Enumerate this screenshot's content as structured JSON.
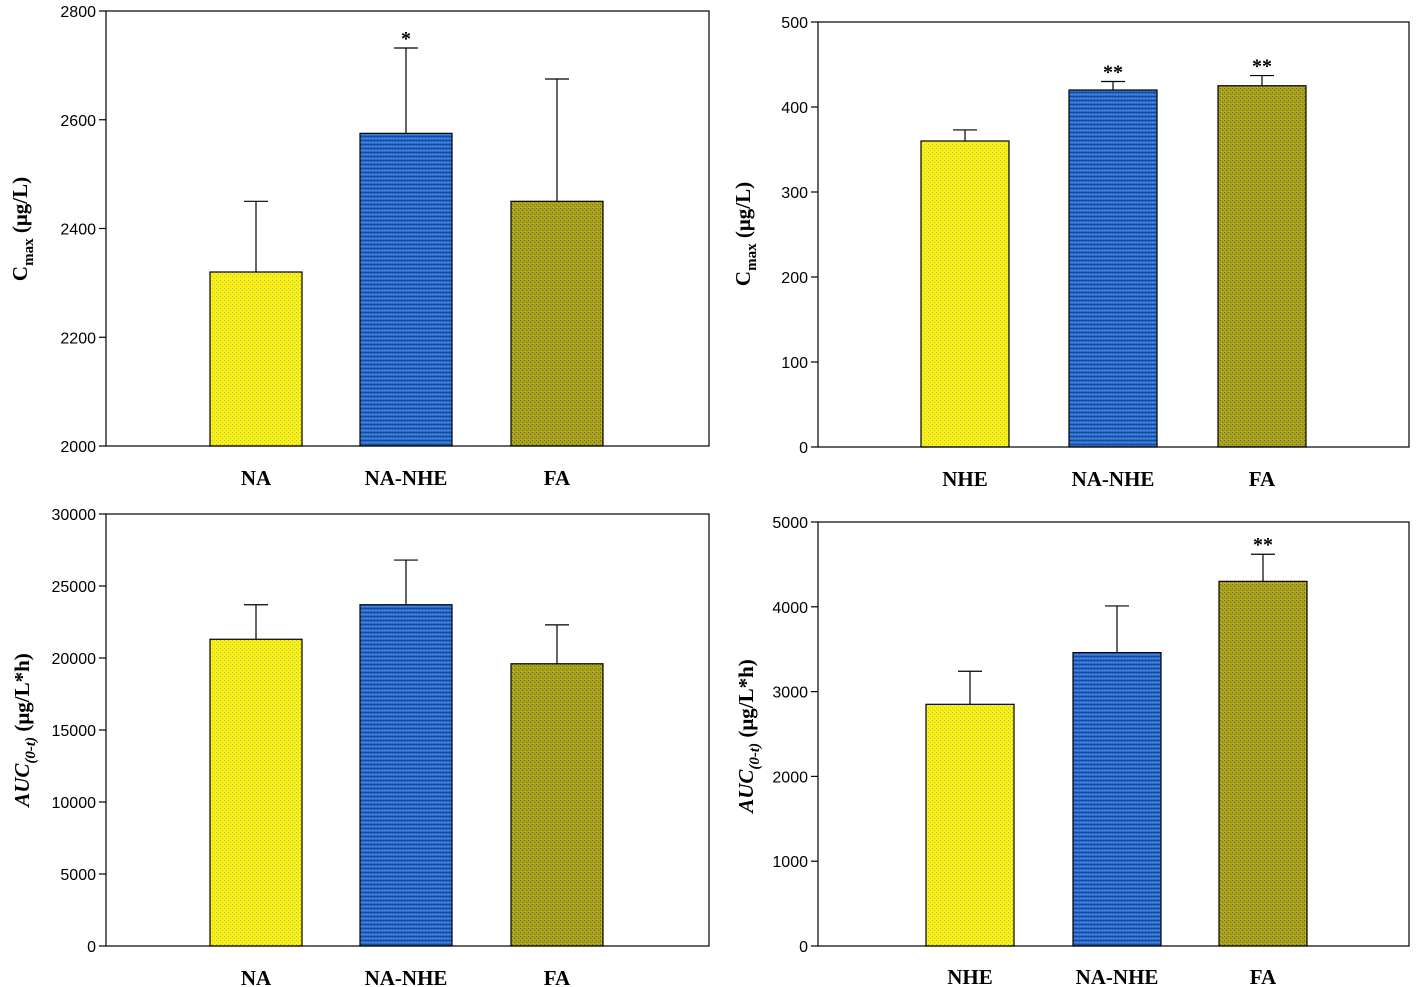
{
  "colors": {
    "yellow": "#f5f01e",
    "blue": "#2a6bc9",
    "olive": "#a8a21c",
    "axis": "#000000"
  },
  "chart_data": [
    {
      "type": "bar",
      "title": "",
      "ylabel": {
        "main": "C",
        "sub": "max",
        "unit": " (μg/L)",
        "italic": false
      },
      "xlabel": "",
      "categories": [
        "NA",
        "NA-NHE",
        "FA"
      ],
      "values": [
        2320,
        2575,
        2450
      ],
      "errors": [
        130,
        157,
        225
      ],
      "annotations": [
        "",
        "*",
        ""
      ],
      "bar_colors": [
        "yellow",
        "blue",
        "olive"
      ],
      "ylim": [
        2000,
        2800
      ],
      "yticks": [
        2000,
        2200,
        2400,
        2600,
        2800
      ],
      "ytick_labels": [
        "2000",
        "2200",
        "2400",
        "2600",
        "2800"
      ]
    },
    {
      "type": "bar",
      "title": "",
      "ylabel": {
        "main": "C",
        "sub": "max",
        "unit": " (μg/L)",
        "italic": false
      },
      "xlabel": "",
      "categories": [
        "NHE",
        "NA-NHE",
        "FA"
      ],
      "values": [
        360,
        420,
        425
      ],
      "errors": [
        13,
        10,
        12
      ],
      "annotations": [
        "",
        "**",
        "**"
      ],
      "bar_colors": [
        "yellow",
        "blue",
        "olive"
      ],
      "ylim": [
        0,
        500
      ],
      "yticks": [
        0,
        100,
        200,
        300,
        400,
        500
      ],
      "ytick_labels": [
        "0",
        "100",
        "200",
        "300",
        "400",
        "500"
      ]
    },
    {
      "type": "bar",
      "title": "",
      "ylabel": {
        "main": "AUC",
        "sub": "(0-t)",
        "unit": " (μg/L*h)",
        "italic": true
      },
      "xlabel": "",
      "categories": [
        "NA",
        "NA-NHE",
        "FA"
      ],
      "values": [
        21300,
        23700,
        19600
      ],
      "errors": [
        2400,
        3100,
        2700
      ],
      "annotations": [
        "",
        "",
        ""
      ],
      "bar_colors": [
        "yellow",
        "blue",
        "olive"
      ],
      "ylim": [
        0,
        30000
      ],
      "yticks": [
        0,
        5000,
        10000,
        15000,
        20000,
        25000,
        30000
      ],
      "ytick_labels": [
        "0",
        "5000",
        "10000",
        "15000",
        "20000",
        "25000",
        "30000"
      ]
    },
    {
      "type": "bar",
      "title": "",
      "ylabel": {
        "main": "AUC",
        "sub": "(0-t)",
        "unit": " (μg/L*h)",
        "italic": true
      },
      "xlabel": "",
      "categories": [
        "NHE",
        "NA-NHE",
        "FA"
      ],
      "values": [
        2850,
        3460,
        4300
      ],
      "errors": [
        390,
        550,
        320
      ],
      "annotations": [
        "",
        "",
        "**"
      ],
      "bar_colors": [
        "yellow",
        "blue",
        "olive"
      ],
      "ylim": [
        0,
        5000
      ],
      "yticks": [
        0,
        1000,
        2000,
        3000,
        4000,
        5000
      ],
      "ytick_labels": [
        "0",
        "1000",
        "2000",
        "3000",
        "4000",
        "5000"
      ]
    }
  ]
}
